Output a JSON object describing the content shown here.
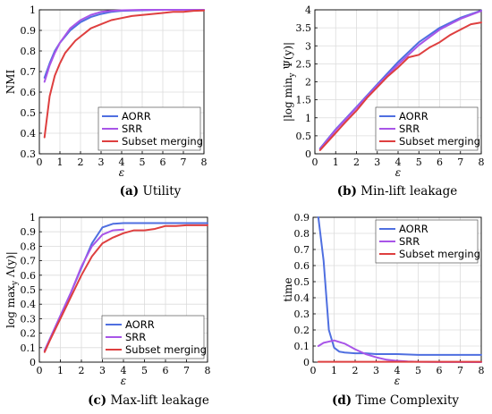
{
  "chart_data": [
    {
      "id": "a",
      "type": "line",
      "caption_tag": "(a)",
      "caption": "Utility",
      "xlabel": "ε",
      "ylabel": "NMI",
      "xlim": [
        0,
        8
      ],
      "ylim": [
        0.3,
        1
      ],
      "xticks": [
        "0",
        "1",
        "2",
        "3",
        "4",
        "5",
        "6",
        "7",
        "8"
      ],
      "yticks": [
        "0.3",
        "0.4",
        "0.5",
        "0.6",
        "0.7",
        "0.8",
        "0.9",
        "1"
      ],
      "yticks_values": [
        0.3,
        0.4,
        0.5,
        0.6,
        0.7,
        0.8,
        0.9,
        1.0
      ],
      "grid": true,
      "legend_position": "bottom-right",
      "series": [
        {
          "name": "AORR",
          "color": "#4f6fe0",
          "x": [
            0.25,
            0.5,
            0.75,
            1,
            1.5,
            2,
            2.5,
            3,
            3.5,
            4,
            5,
            6,
            7,
            8
          ],
          "y": [
            0.67,
            0.74,
            0.8,
            0.84,
            0.9,
            0.94,
            0.965,
            0.98,
            0.99,
            0.995,
            0.998,
            1,
            1,
            1
          ]
        },
        {
          "name": "SRR",
          "color": "#a855e8",
          "x": [
            0.25,
            0.5,
            0.75,
            1,
            1.5,
            2,
            2.5,
            3,
            3.5,
            4,
            5,
            6,
            7,
            8
          ],
          "y": [
            0.65,
            0.73,
            0.79,
            0.84,
            0.91,
            0.95,
            0.975,
            0.99,
            0.995,
            0.998,
            1,
            1,
            1,
            1
          ]
        },
        {
          "name": "Subset merging",
          "color": "#de3f3f",
          "x": [
            0.25,
            0.5,
            0.75,
            1,
            1.25,
            1.5,
            1.75,
            2,
            2.25,
            2.5,
            3,
            3.5,
            4,
            4.5,
            5,
            5.5,
            6,
            6.5,
            7,
            7.5,
            8
          ],
          "y": [
            0.38,
            0.58,
            0.68,
            0.74,
            0.79,
            0.82,
            0.85,
            0.87,
            0.89,
            0.91,
            0.93,
            0.95,
            0.96,
            0.97,
            0.975,
            0.98,
            0.985,
            0.99,
            0.99,
            0.995,
            0.997
          ]
        }
      ]
    },
    {
      "id": "b",
      "type": "line",
      "caption_tag": "(b)",
      "caption": "Min-lift leakage",
      "xlabel": "ε",
      "ylabel": "|log min_y Ψ(y)|",
      "xlim": [
        0,
        8
      ],
      "ylim": [
        0,
        4
      ],
      "xticks": [
        "0",
        "1",
        "2",
        "3",
        "4",
        "5",
        "6",
        "7",
        "8"
      ],
      "yticks": [
        "0",
        "0.5",
        "1",
        "1.5",
        "2",
        "2.5",
        "3",
        "3.5",
        "4"
      ],
      "yticks_values": [
        0,
        0.5,
        1,
        1.5,
        2,
        2.5,
        3,
        3.5,
        4
      ],
      "grid": true,
      "legend_position": "bottom-right",
      "series": [
        {
          "name": "AORR",
          "color": "#4f6fe0",
          "x": [
            0.25,
            1,
            2,
            3,
            4,
            5,
            6,
            7,
            8
          ],
          "y": [
            0.15,
            0.68,
            1.3,
            1.93,
            2.55,
            3.1,
            3.5,
            3.78,
            3.98
          ]
        },
        {
          "name": "SRR",
          "color": "#a855e8",
          "x": [
            0.25,
            1,
            2,
            3,
            4,
            5,
            6,
            7,
            8
          ],
          "y": [
            0.13,
            0.66,
            1.28,
            1.9,
            2.48,
            3.02,
            3.45,
            3.75,
            3.97
          ]
        },
        {
          "name": "Subset merging",
          "color": "#de3f3f",
          "x": [
            0.25,
            1,
            1.5,
            2,
            2.5,
            3,
            3.5,
            4,
            4.5,
            5,
            5.5,
            6,
            6.5,
            7,
            7.5,
            8
          ],
          "y": [
            0.1,
            0.58,
            0.9,
            1.2,
            1.55,
            1.85,
            2.15,
            2.4,
            2.68,
            2.75,
            2.95,
            3.1,
            3.3,
            3.45,
            3.6,
            3.65
          ]
        }
      ]
    },
    {
      "id": "c",
      "type": "line",
      "caption_tag": "(c)",
      "caption": "Max-lift leakage",
      "xlabel": "ε",
      "ylabel": "log max_y Λ(y)|",
      "xlim": [
        0,
        8
      ],
      "ylim": [
        0,
        1
      ],
      "xticks": [
        "0",
        "1",
        "2",
        "3",
        "4",
        "5",
        "6",
        "7",
        "8"
      ],
      "yticks": [
        "0",
        "0.1",
        "0.2",
        "0.3",
        "0.4",
        "0.5",
        "0.6",
        "0.7",
        "0.8",
        "0.9",
        "1"
      ],
      "yticks_values": [
        0,
        0.1,
        0.2,
        0.3,
        0.4,
        0.5,
        0.6,
        0.7,
        0.8,
        0.9,
        1.0
      ],
      "grid": true,
      "legend_position": "bottom-right",
      "series": [
        {
          "name": "AORR",
          "color": "#4f6fe0",
          "x": [
            0.25,
            0.5,
            1,
            1.5,
            2,
            2.5,
            3,
            3.5,
            4,
            5,
            6,
            7,
            8
          ],
          "y": [
            0.08,
            0.16,
            0.32,
            0.48,
            0.65,
            0.82,
            0.93,
            0.955,
            0.96,
            0.96,
            0.96,
            0.96,
            0.96
          ]
        },
        {
          "name": "SRR",
          "color": "#a855e8",
          "x": [
            0.25,
            0.5,
            1,
            1.5,
            2,
            2.5,
            3,
            3.5,
            4
          ],
          "y": [
            0.08,
            0.16,
            0.32,
            0.48,
            0.66,
            0.8,
            0.88,
            0.91,
            0.915
          ]
        },
        {
          "name": "Subset merging",
          "color": "#de3f3f",
          "x": [
            0.25,
            0.5,
            1,
            1.5,
            2,
            2.5,
            3,
            3.5,
            4,
            4.5,
            5,
            5.5,
            6,
            6.5,
            7,
            8
          ],
          "y": [
            0.07,
            0.15,
            0.3,
            0.45,
            0.6,
            0.73,
            0.82,
            0.86,
            0.89,
            0.91,
            0.91,
            0.92,
            0.94,
            0.94,
            0.945,
            0.945
          ]
        }
      ]
    },
    {
      "id": "d",
      "type": "line",
      "caption_tag": "(d)",
      "caption": "Time Complexity",
      "xlabel": "ε",
      "ylabel": "time",
      "xlim": [
        0,
        8
      ],
      "ylim": [
        0,
        0.9
      ],
      "xticks": [
        "0",
        "1",
        "2",
        "3",
        "4",
        "5",
        "6",
        "7",
        "8"
      ],
      "yticks": [
        "0",
        "0.1",
        "0.2",
        "0.3",
        "0.4",
        "0.5",
        "0.6",
        "0.7",
        "0.8",
        "0.9"
      ],
      "yticks_values": [
        0,
        0.1,
        0.2,
        0.3,
        0.4,
        0.5,
        0.6,
        0.7,
        0.8,
        0.9
      ],
      "grid": true,
      "legend_position": "top-right",
      "series": [
        {
          "name": "AORR",
          "color": "#4f6fe0",
          "x": [
            0.25,
            0.5,
            0.75,
            1,
            1.25,
            1.5,
            2,
            2.5,
            3,
            4,
            5,
            6,
            7,
            8
          ],
          "y": [
            0.9,
            0.63,
            0.2,
            0.09,
            0.065,
            0.06,
            0.055,
            0.055,
            0.05,
            0.05,
            0.045,
            0.045,
            0.045,
            0.045
          ]
        },
        {
          "name": "SRR",
          "color": "#a855e8",
          "x": [
            0.25,
            0.5,
            1,
            1.5,
            2,
            2.5,
            3,
            3.5,
            4,
            4.5,
            5,
            6,
            8
          ],
          "y": [
            0.1,
            0.12,
            0.135,
            0.115,
            0.08,
            0.05,
            0.03,
            0.015,
            0.008,
            0.004,
            0.002,
            0.001,
            0.0
          ]
        },
        {
          "name": "Subset merging",
          "color": "#de3f3f",
          "x": [
            0.25,
            1,
            2,
            3,
            4,
            5,
            6,
            7,
            8
          ],
          "y": [
            0.002,
            0.002,
            0.002,
            0.002,
            0.002,
            0.002,
            0.002,
            0.002,
            0.002
          ]
        }
      ]
    }
  ]
}
